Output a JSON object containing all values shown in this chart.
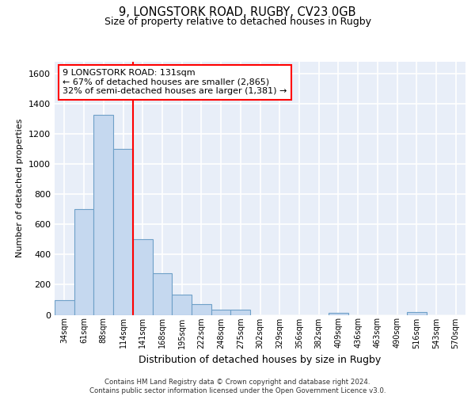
{
  "title1": "9, LONGSTORK ROAD, RUGBY, CV23 0GB",
  "title2": "Size of property relative to detached houses in Rugby",
  "xlabel": "Distribution of detached houses by size in Rugby",
  "ylabel": "Number of detached properties",
  "bar_color": "#c5d8ef",
  "bar_edge_color": "#6ea0c8",
  "background_color": "#e8eef8",
  "grid_color": "#ffffff",
  "categories": [
    "34sqm",
    "61sqm",
    "88sqm",
    "114sqm",
    "141sqm",
    "168sqm",
    "195sqm",
    "222sqm",
    "248sqm",
    "275sqm",
    "302sqm",
    "329sqm",
    "356sqm",
    "382sqm",
    "409sqm",
    "436sqm",
    "463sqm",
    "490sqm",
    "516sqm",
    "543sqm",
    "570sqm"
  ],
  "values": [
    95,
    700,
    1325,
    1100,
    500,
    275,
    135,
    70,
    35,
    35,
    0,
    0,
    0,
    0,
    15,
    0,
    0,
    0,
    20,
    0,
    0
  ],
  "ylim": [
    0,
    1680
  ],
  "yticks": [
    0,
    200,
    400,
    600,
    800,
    1000,
    1200,
    1400,
    1600
  ],
  "red_line_x": 3.5,
  "annotation_line1": "9 LONGSTORK ROAD: 131sqm",
  "annotation_line2": "← 67% of detached houses are smaller (2,865)",
  "annotation_line3": "32% of semi-detached houses are larger (1,381) →",
  "footer": "Contains HM Land Registry data © Crown copyright and database right 2024.\nContains public sector information licensed under the Open Government Licence v3.0."
}
